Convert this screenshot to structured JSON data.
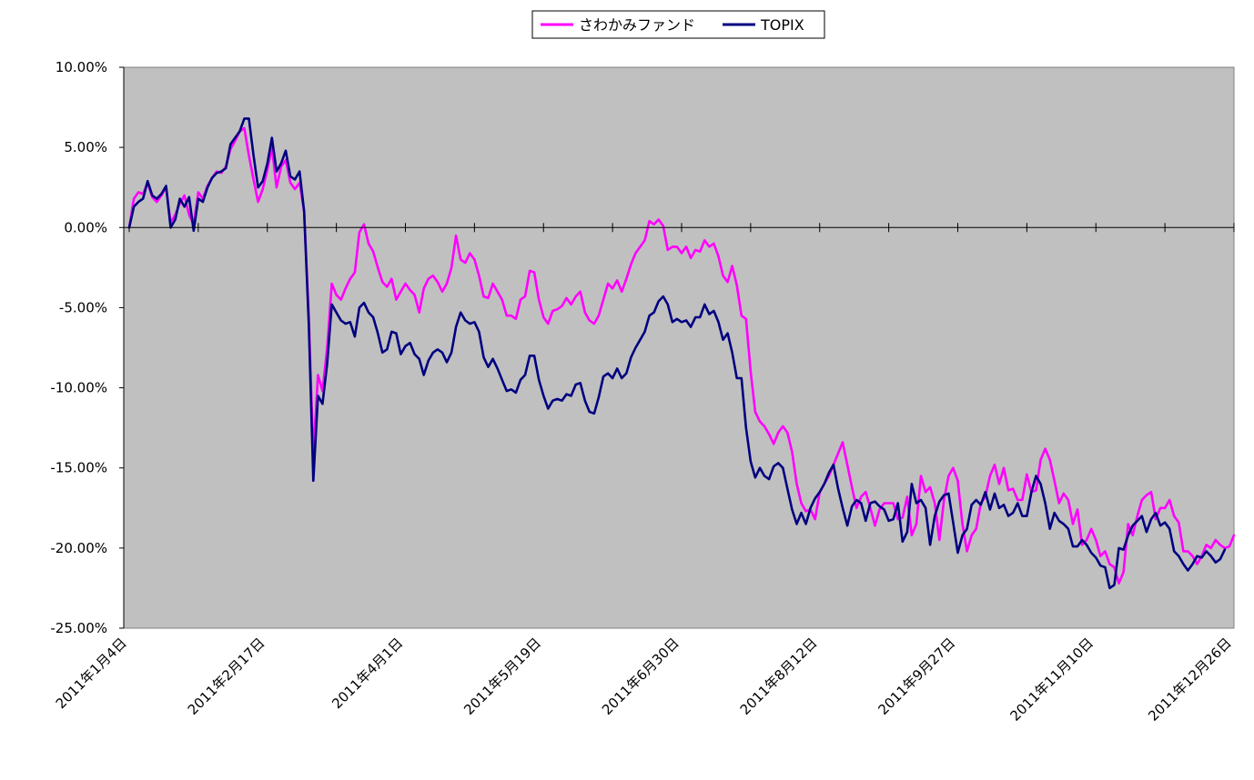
{
  "colors": {
    "plot_bg": "#c0c0c0",
    "fund": "#ff00ff",
    "topix": "#000080",
    "zero_line": "#000000"
  },
  "chart_data": {
    "type": "line",
    "title": "",
    "xlabel": "",
    "ylabel": "",
    "ylim": [
      -25,
      10
    ],
    "y_ticks": [
      10,
      5,
      0,
      -5,
      -10,
      -15,
      -20,
      -25
    ],
    "y_tick_labels": [
      "10.00%",
      "5.00%",
      "0.00%",
      "-5.00%",
      "-10.00%",
      "-15.00%",
      "-20.00%",
      "-25.00%"
    ],
    "x_tick_labels": [
      "2011年1月4日",
      "2011年2月17日",
      "2011年4月1日",
      "2011年5月19日",
      "2011年6月30日",
      "2011年8月12日",
      "2011年9月27日",
      "2011年11月10日",
      "2011年12月26日"
    ],
    "x_tick_index": [
      0,
      30,
      60,
      90,
      120,
      150,
      180,
      210,
      240
    ],
    "legend_position": "top-center",
    "grid": false,
    "series": [
      {
        "name": "さわかみファンド",
        "color": "#ff00ff",
        "values": [
          0,
          1.8,
          2.2,
          2.1,
          2.8,
          1.9,
          1.6,
          2,
          2.5,
          0.3,
          0.8,
          1.5,
          2,
          0.8,
          0.2,
          2.2,
          1.8,
          2.6,
          3.1,
          3.5,
          3.4,
          3.8,
          4.9,
          5.4,
          6,
          6.2,
          4.5,
          3,
          1.6,
          2.4,
          3.6,
          5,
          2.5,
          3.8,
          4.2,
          2.8,
          2.4,
          2.8,
          1,
          -5.5,
          -14.2,
          -9.2,
          -10.2,
          -7.5,
          -3.5,
          -4.2,
          -4.5,
          -3.8,
          -3.2,
          -2.8,
          -0.3,
          0.2,
          -1,
          -1.5,
          -2.5,
          -3.4,
          -3.7,
          -3.2,
          -4.5,
          -4,
          -3.5,
          -3.9,
          -4.2,
          -5.3,
          -3.8,
          -3.2,
          -3,
          -3.4,
          -4,
          -3.5,
          -2.5,
          -0.5,
          -2,
          -2.2,
          -1.6,
          -2,
          -3,
          -4.3,
          -4.4,
          -3.5,
          -4,
          -4.5,
          -5.5,
          -5.5,
          -5.7,
          -4.5,
          -4.3,
          -2.7,
          -2.8,
          -4.5,
          -5.6,
          -6,
          -5.2,
          -5.1,
          -4.9,
          -4.4,
          -4.8,
          -4.3,
          -4,
          -5.3,
          -5.8,
          -6,
          -5.5,
          -4.5,
          -3.5,
          -3.8,
          -3.3,
          -4,
          -3.2,
          -2.3,
          -1.6,
          -1.2,
          -0.8,
          0.4,
          0.2,
          0.5,
          0.1,
          -1.4,
          -1.2,
          -1.2,
          -1.6,
          -1.2,
          -1.9,
          -1.4,
          -1.5,
          -0.8,
          -1.2,
          -1,
          -1.8,
          -3,
          -3.4,
          -2.4,
          -3.6,
          -5.5,
          -5.7,
          -9,
          -11.5,
          -12.1,
          -12.4,
          -12.9,
          -13.5,
          -12.8,
          -12.4,
          -12.8,
          -14,
          -16,
          -17.2,
          -17.7,
          -17.6,
          -18.2,
          -16.5,
          -16,
          -15.5,
          -14.8,
          -14.1,
          -13.4,
          -14.8,
          -16.2,
          -17.5,
          -16.8,
          -16.5,
          -17.5,
          -18.6,
          -17.6,
          -17.2,
          -17.2,
          -17.2,
          -18.2,
          -18.1,
          -16.8,
          -19.2,
          -18.5,
          -15.5,
          -16.5,
          -16.2,
          -17.2,
          -19.5,
          -17,
          -15.5,
          -15,
          -15.8,
          -18.5,
          -20.2,
          -19.2,
          -18.8,
          -17.2,
          -16.8,
          -15.5,
          -14.8,
          -16,
          -15,
          -16.4,
          -16.3,
          -17,
          -17,
          -15.4,
          -16.5,
          -16.4,
          -14.5,
          -13.8,
          -14.5,
          -15.8,
          -17.2,
          -16.6,
          -17,
          -18.5,
          -17.6,
          -19.8,
          -19.5,
          -18.8,
          -19.5,
          -20.5,
          -20.2,
          -21,
          -21.2,
          -22.2,
          -21.5,
          -18.5,
          -19.2,
          -18,
          -17,
          -16.7,
          -16.5,
          -18.2,
          -17.5,
          -17.5,
          -17,
          -18,
          -18.4,
          -20.2,
          -20.2,
          -20.5,
          -21,
          -20.5,
          -19.8,
          -20,
          -19.5,
          -19.8,
          -20,
          -19.9,
          -19.2
        ]
      },
      {
        "name": "TOPIX",
        "color": "#000080",
        "values": [
          0,
          1.3,
          1.6,
          1.8,
          2.9,
          2,
          1.8,
          2.1,
          2.6,
          0,
          0.5,
          1.8,
          1.3,
          1.9,
          -0.2,
          1.8,
          1.6,
          2.5,
          3.1,
          3.4,
          3.5,
          3.7,
          5.2,
          5.6,
          6,
          6.8,
          6.8,
          4.5,
          2.5,
          2.9,
          4,
          5.6,
          3.5,
          4,
          4.8,
          3.2,
          3,
          3.5,
          1,
          -6,
          -15.8,
          -10.5,
          -11,
          -8.5,
          -4.8,
          -5.3,
          -5.8,
          -6,
          -5.9,
          -6.8,
          -5,
          -4.7,
          -5.3,
          -5.6,
          -6.6,
          -7.8,
          -7.6,
          -6.5,
          -6.6,
          -7.9,
          -7.4,
          -7.2,
          -7.9,
          -8.2,
          -9.2,
          -8.3,
          -7.8,
          -7.6,
          -7.8,
          -8.4,
          -7.8,
          -6.2,
          -5.3,
          -5.8,
          -6,
          -5.9,
          -6.5,
          -8.1,
          -8.7,
          -8.2,
          -8.8,
          -9.5,
          -10.2,
          -10.1,
          -10.3,
          -9.5,
          -9.2,
          -8,
          -8,
          -9.5,
          -10.5,
          -11.3,
          -10.8,
          -10.7,
          -10.8,
          -10.4,
          -10.5,
          -9.8,
          -9.7,
          -10.8,
          -11.5,
          -11.6,
          -10.6,
          -9.3,
          -9.1,
          -9.4,
          -8.8,
          -9.4,
          -9.1,
          -8.1,
          -7.5,
          -7,
          -6.5,
          -5.5,
          -5.3,
          -4.6,
          -4.3,
          -4.8,
          -5.9,
          -5.7,
          -5.9,
          -5.8,
          -6.2,
          -5.6,
          -5.6,
          -4.8,
          -5.4,
          -5.2,
          -5.9,
          -7,
          -6.6,
          -7.8,
          -9.4,
          -9.4,
          -12.5,
          -14.6,
          -15.6,
          -15,
          -15.5,
          -15.7,
          -14.9,
          -14.7,
          -15,
          -16.3,
          -17.6,
          -18.5,
          -17.8,
          -18.5,
          -17.5,
          -16.9,
          -16.5,
          -16,
          -15.3,
          -14.8,
          -16.3,
          -17.5,
          -18.6,
          -17.4,
          -17,
          -17.2,
          -18.3,
          -17.2,
          -17.1,
          -17.4,
          -17.6,
          -18.3,
          -18.2,
          -17.2,
          -19.6,
          -19,
          -16,
          -17.2,
          -17,
          -17.5,
          -19.8,
          -18,
          -17.1,
          -16.7,
          -16.6,
          -18.4,
          -20.3,
          -19.2,
          -18.8,
          -17.3,
          -17,
          -17.3,
          -16.5,
          -17.6,
          -16.6,
          -17.5,
          -17.3,
          -18,
          -17.8,
          -17.2,
          -18,
          -18,
          -16.5,
          -15.5,
          -16,
          -17.2,
          -18.8,
          -17.8,
          -18.3,
          -18.5,
          -18.8,
          -19.9,
          -19.9,
          -19.5,
          -19.8,
          -20.3,
          -20.6,
          -21.1,
          -21.2,
          -22.5,
          -22.3,
          -20,
          -20.1,
          -19.2,
          -18.6,
          -18.3,
          -18,
          -19,
          -18.2,
          -17.8,
          -18.6,
          -18.4,
          -18.8,
          -20.2,
          -20.5,
          -21,
          -21.4,
          -21,
          -20.5,
          -20.6,
          -20.2,
          -20.5,
          -20.9,
          -20.7,
          -20.1
        ]
      }
    ]
  }
}
